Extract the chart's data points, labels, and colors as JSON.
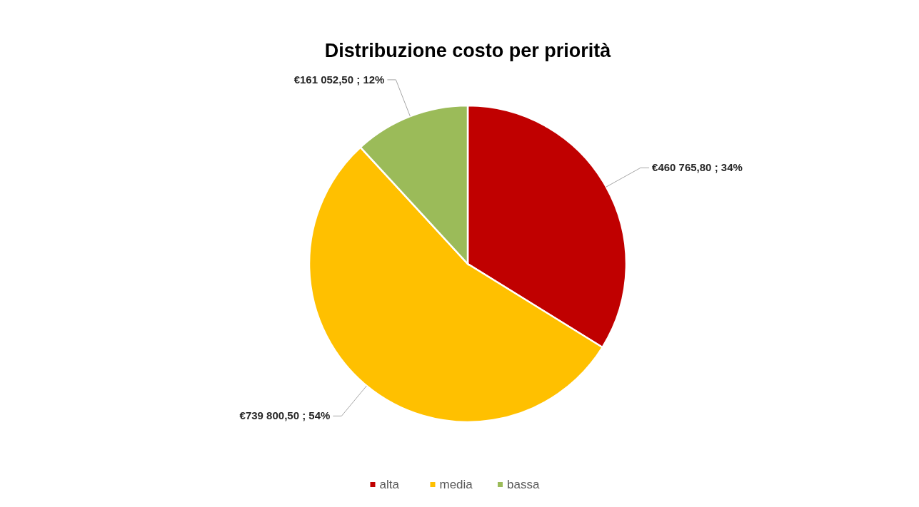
{
  "chart_data": {
    "type": "pie",
    "title": "Distribuzione costo per priorità",
    "categories": [
      "alta",
      "media",
      "bassa"
    ],
    "values": [
      460765.8,
      739800.5,
      161052.5
    ],
    "colors": [
      "#c00000",
      "#ffc000",
      "#9bbb59"
    ],
    "value_labels": [
      "€460 765,80 ; 34%",
      "€739 800,50 ; 54%",
      "€161 052,50 ; 12%"
    ],
    "legend": "bottom"
  }
}
